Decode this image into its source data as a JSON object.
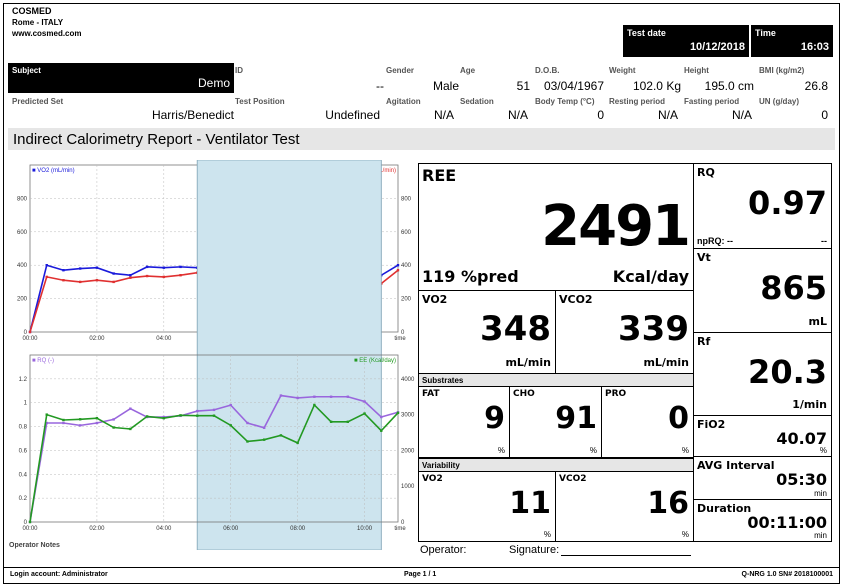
{
  "header": {
    "company": "COSMED",
    "city": "Rome - ITALY",
    "website": "www.cosmed.com",
    "test_date_label": "Test date",
    "test_date": "10/12/2018",
    "time_label": "Time",
    "time": "16:03"
  },
  "subject": {
    "subject_label": "Subject",
    "subject_value": "Demo",
    "predicted_set_label": "Predicted Set",
    "predicted_set_value": "Harris/Benedict",
    "id_label": "ID",
    "id_value": "--",
    "gender_label": "Gender",
    "gender_value": "Male",
    "age_label": "Age",
    "age_value": "51",
    "dob_label": "D.O.B.",
    "dob_value": "03/04/1967",
    "weight_label": "Weight",
    "weight_value": "102.0 Kg",
    "height_label": "Height",
    "height_value": "195.0 cm",
    "bmi_label": "BMI (kg/m2)",
    "bmi_value": "26.8",
    "test_position_label": "Test Position",
    "test_position_value": "Undefined",
    "agitation_label": "Agitation",
    "agitation_value": "N/A",
    "sedation_label": "Sedation",
    "sedation_value": "N/A",
    "body_temp_label": "Body Temp (°C)",
    "body_temp_value": "0",
    "resting_period_label": "Resting period",
    "resting_period_value": "N/A",
    "fasting_period_label": "Fasting period",
    "fasting_period_value": "N/A",
    "un_label": "UN (g/day)",
    "un_value": "0"
  },
  "report_title": "Indirect Calorimetry Report - Ventilator Test",
  "colors": {
    "vo2": "#1a1adb",
    "vco2": "#e03030",
    "rq": "#9966dd",
    "ee": "#229922",
    "highlight": "#cde4ee"
  },
  "chart_data": [
    {
      "type": "line",
      "x_ticks": [
        "00:00",
        "02:00",
        "04:00",
        "06:00",
        "08:00",
        "10:00",
        "time"
      ],
      "x_minutes": [
        0,
        0.5,
        1,
        1.5,
        2,
        2.5,
        3,
        3.5,
        4,
        4.5,
        5,
        5.5,
        6,
        6.5,
        7,
        7.5,
        8,
        8.5,
        9,
        9.5,
        10,
        10.5,
        11
      ],
      "ylim": [
        0,
        1000
      ],
      "y_ticks_left": [
        "0",
        "200",
        "400",
        "600",
        "800"
      ],
      "y_ticks_right": [
        "0",
        "200",
        "400",
        "600",
        "800"
      ],
      "highlight_minutes": [
        5,
        10.5
      ],
      "series": [
        {
          "name": "VO2 (mL/min)",
          "values": [
            0,
            400,
            370,
            380,
            385,
            350,
            340,
            390,
            385,
            390,
            385,
            380,
            350,
            300,
            310,
            330,
            290,
            410,
            350,
            350,
            395,
            340,
            400
          ]
        },
        {
          "name": "VCO2 (mL/min)",
          "values": [
            0,
            330,
            310,
            300,
            310,
            300,
            325,
            335,
            330,
            340,
            355,
            355,
            330,
            250,
            250,
            320,
            280,
            430,
            370,
            370,
            400,
            290,
            370
          ]
        }
      ]
    },
    {
      "type": "line",
      "x_ticks": [
        "00:00",
        "02:00",
        "04:00",
        "06:00",
        "08:00",
        "10:00",
        "time"
      ],
      "x_minutes": [
        0,
        0.5,
        1,
        1.5,
        2,
        2.5,
        3,
        3.5,
        4,
        4.5,
        5,
        5.5,
        6,
        6.5,
        7,
        7.5,
        8,
        8.5,
        9,
        9.5,
        10,
        10.5,
        11
      ],
      "ylim_left": [
        0,
        1.4
      ],
      "ylim_right": [
        0,
        4666
      ],
      "y_ticks_left": [
        "0",
        "0.2",
        "0.4",
        "0.6",
        "0.8",
        "1",
        "1.2"
      ],
      "y_ticks_right": [
        "0",
        "1000",
        "2000",
        "3000",
        "4000"
      ],
      "highlight_minutes": [
        5,
        10.5
      ],
      "series": [
        {
          "name": "RQ (-)",
          "axis": "left",
          "values": [
            0,
            0.83,
            0.83,
            0.81,
            0.83,
            0.86,
            0.95,
            0.88,
            0.88,
            0.89,
            0.93,
            0.94,
            0.98,
            0.83,
            0.79,
            1.06,
            1.04,
            1.05,
            1.05,
            1.05,
            1.01,
            0.88,
            0.92
          ]
        },
        {
          "name": "EE (Kcal/day)",
          "axis": "right",
          "values": [
            0,
            3000,
            2850,
            2870,
            2900,
            2640,
            2600,
            2950,
            2900,
            2980,
            2970,
            2970,
            2700,
            2250,
            2300,
            2420,
            2210,
            3270,
            2800,
            2800,
            3030,
            2550,
            3050
          ]
        }
      ]
    }
  ],
  "operator_notes_label": "Operator Notes",
  "ree": {
    "label": "REE",
    "value": "2491",
    "pred": "119 %pred",
    "unit": "Kcal/day"
  },
  "vo2": {
    "label": "VO2",
    "value": "348",
    "unit": "mL/min"
  },
  "vco2": {
    "label": "VCO2",
    "value": "339",
    "unit": "mL/min"
  },
  "substrates": {
    "label": "Substrates",
    "fat_label": "FAT",
    "fat_value": "9",
    "fat_unit": "%",
    "cho_label": "CHO",
    "cho_value": "91",
    "cho_unit": "%",
    "pro_label": "PRO",
    "pro_value": "0",
    "pro_unit": "%"
  },
  "variability": {
    "label": "Variability",
    "vo2_label": "VO2",
    "vo2_value": "11",
    "vo2_unit": "%",
    "vco2_label": "VCO2",
    "vco2_value": "16",
    "vco2_unit": "%"
  },
  "right_panels": {
    "rq_label": "RQ",
    "rq_value": "0.97",
    "nprq_label": "npRQ: --",
    "nprq_value": "--",
    "vt_label": "Vt",
    "vt_value": "865",
    "vt_unit": "mL",
    "rf_label": "Rf",
    "rf_value": "20.3",
    "rf_unit": "1/min",
    "fio2_label": "FiO2",
    "fio2_value": "40.07",
    "fio2_unit": "%",
    "avg_label": "AVG Interval",
    "avg_value": "05:30",
    "avg_unit": "min",
    "dur_label": "Duration",
    "dur_value": "00:11:00",
    "dur_unit": "min"
  },
  "operator_line": {
    "operator_label": "Operator:",
    "signature_label": "Signature:"
  },
  "footer": {
    "login": "Login account: Administrator",
    "page": "Page 1 / 1",
    "software": "Q-NRG 1.0 SN# 2018100001"
  }
}
